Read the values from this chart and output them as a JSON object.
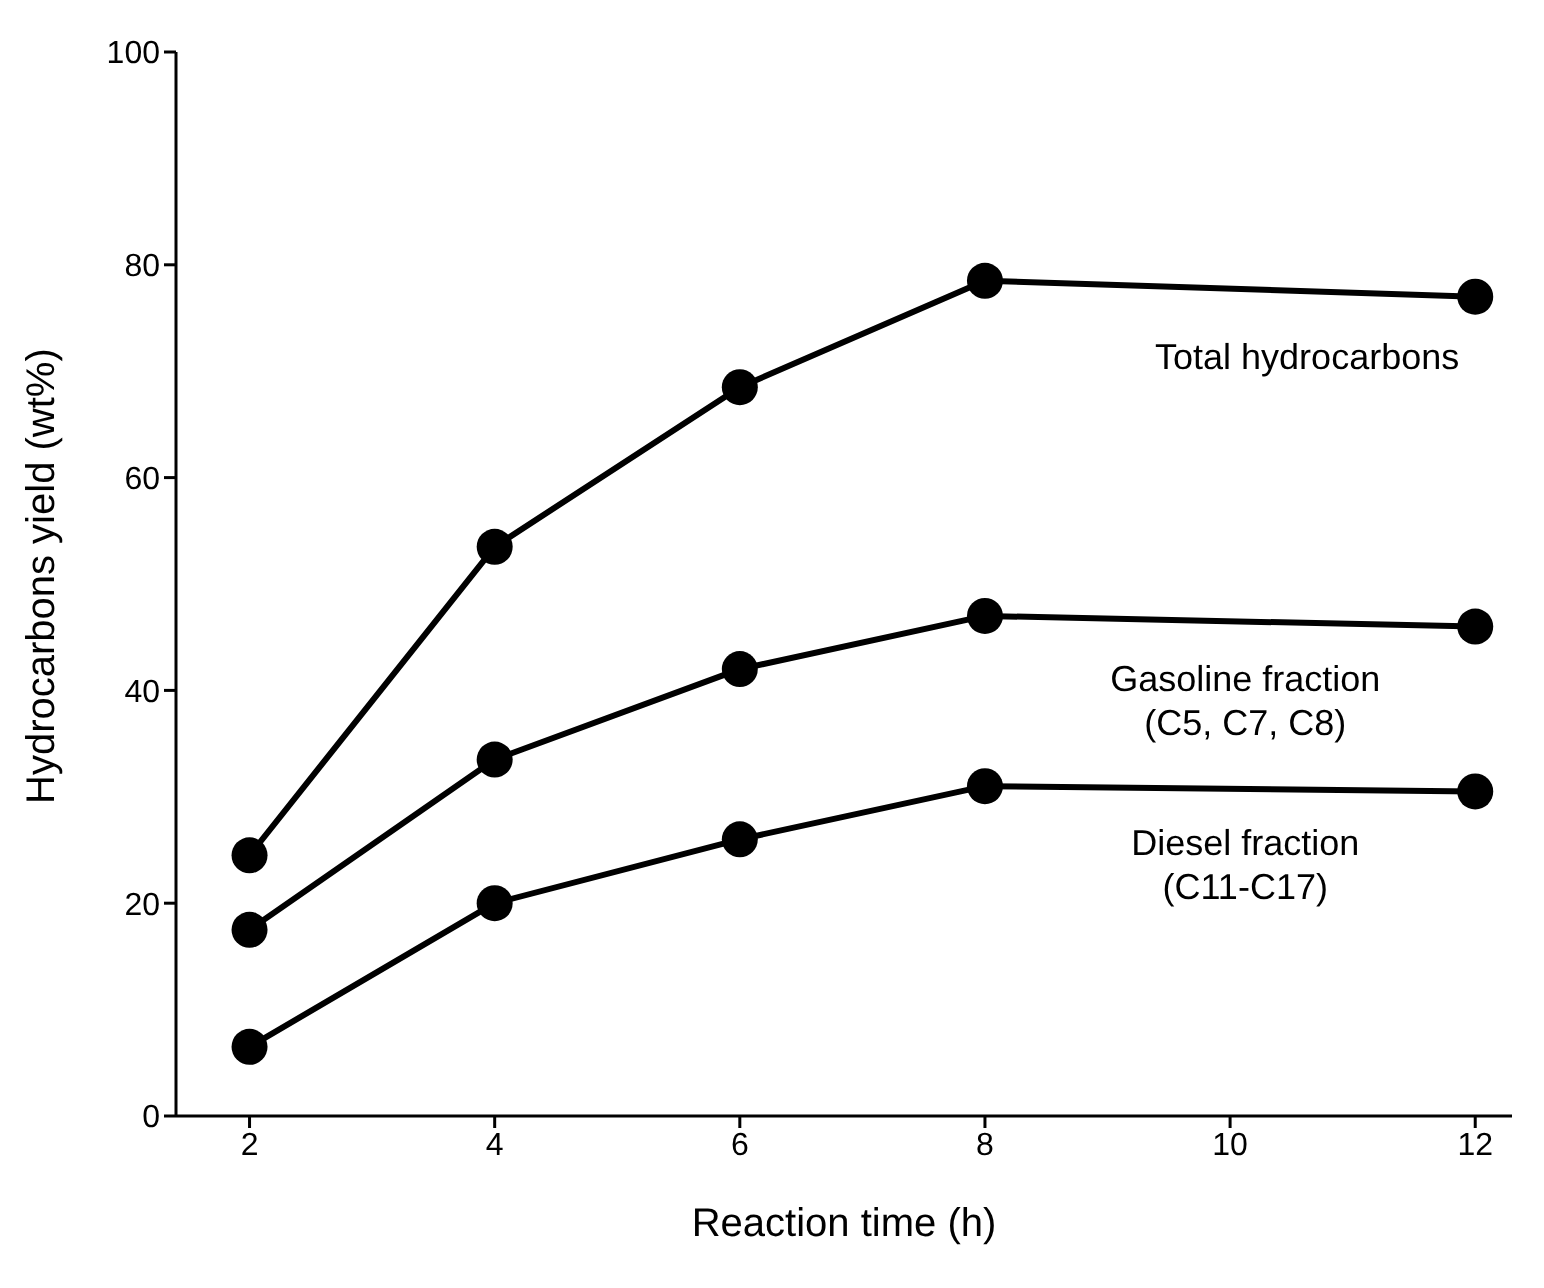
{
  "chart_data": {
    "type": "line",
    "xlabel": "Reaction time (h)",
    "ylabel": "Hydrocarbons  yield (wt%)",
    "xlim": [
      1.4,
      12.3
    ],
    "xticks": [
      2,
      4,
      6,
      8,
      10,
      12
    ],
    "ylim": [
      0,
      100
    ],
    "yticks": [
      0,
      20,
      40,
      60,
      80,
      100
    ],
    "grid": false,
    "marker": "circle",
    "line_style": "solid",
    "series": [
      {
        "name": "Total hydrocarbons",
        "color": "#000000",
        "x": [
          2,
          4,
          6,
          8,
          12
        ],
        "values": [
          24.5,
          53.5,
          68.5,
          78.5,
          77
        ]
      },
      {
        "name": "Gasoline fraction\n(C5, C7, C8)",
        "color": "#000000",
        "x": [
          2,
          4,
          6,
          8,
          12
        ],
        "values": [
          17.5,
          33.5,
          42,
          47,
          46
        ]
      },
      {
        "name": "Diesel fraction\n(C11-C17)",
        "color": "#000000",
        "x": [
          2,
          4,
          6,
          8,
          12
        ],
        "values": [
          6.5,
          20,
          26,
          31,
          30.5
        ]
      }
    ]
  }
}
